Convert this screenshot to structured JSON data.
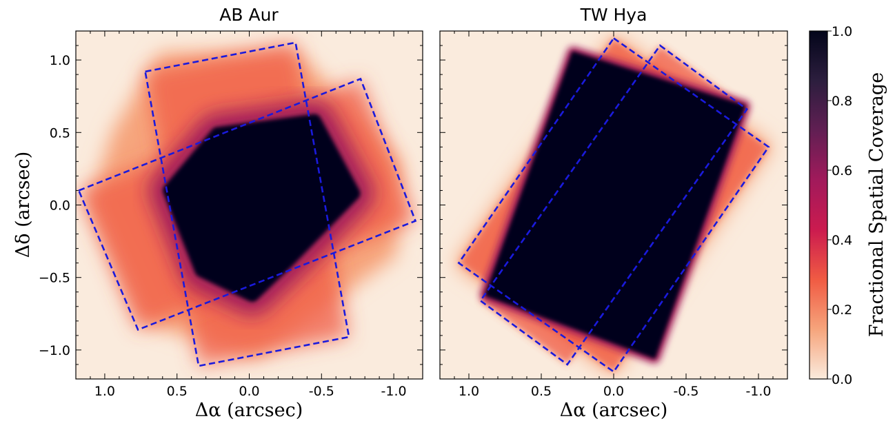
{
  "chart_data": [
    {
      "type": "heatmap",
      "title": "AB Aur",
      "xlabel": "Δα (arcsec)",
      "ylabel": "Δδ (arcsec)",
      "xlim": [
        1.2,
        -1.2
      ],
      "ylim": [
        -1.2,
        1.2
      ],
      "x_ticks": [
        1.0,
        0.5,
        0.0,
        -0.5,
        -1.0
      ],
      "x_tick_labels": [
        "1.0",
        "0.5",
        "0.0",
        "-0.5",
        "-1.0"
      ],
      "y_ticks": [
        1.0,
        0.5,
        0.0,
        -0.5,
        -1.0
      ],
      "y_tick_labels": [
        "1.0",
        "0.5",
        "0.0",
        "−0.5",
        "−1.0"
      ],
      "core_full_coverage": [
        [
          0.22,
          0.49
        ],
        [
          -0.45,
          0.58
        ],
        [
          -0.72,
          0.08
        ],
        [
          -0.27,
          -0.38
        ],
        [
          -0.02,
          -0.62
        ],
        [
          0.33,
          -0.45
        ],
        [
          0.49,
          -0.05
        ],
        [
          0.55,
          0.1
        ]
      ],
      "coverage_extent": [
        [
          0.62,
          1.05
        ],
        [
          -0.35,
          1.04
        ],
        [
          -1.05,
          0.3
        ],
        [
          -1.02,
          -0.35
        ],
        [
          -0.05,
          -1.05
        ],
        [
          0.72,
          -0.82
        ],
        [
          1.1,
          0.02
        ],
        [
          0.95,
          0.5
        ]
      ],
      "footprints": [
        [
          [
            0.72,
            0.92
          ],
          [
            -0.32,
            1.12
          ],
          [
            -0.69,
            -0.91
          ],
          [
            0.35,
            -1.11
          ]
        ],
        [
          [
            1.18,
            0.1
          ],
          [
            -0.77,
            0.87
          ],
          [
            -1.15,
            -0.11
          ],
          [
            0.77,
            -0.86
          ]
        ]
      ]
    },
    {
      "type": "heatmap",
      "title": "TW Hya",
      "xlabel": "Δα (arcsec)",
      "xlim": [
        1.2,
        -1.2
      ],
      "ylim": [
        -1.2,
        1.2
      ],
      "x_ticks": [
        1.0,
        0.5,
        0.0,
        -0.5,
        -1.0
      ],
      "x_tick_labels": [
        "1.0",
        "0.5",
        "0.0",
        "-0.5",
        "-1.0"
      ],
      "core_full_coverage": [
        [
          0.28,
          1.05
        ],
        [
          -0.9,
          0.68
        ],
        [
          -0.28,
          -1.05
        ],
        [
          0.88,
          -0.62
        ]
      ],
      "coverage_extent": [
        [
          0.0,
          1.17
        ],
        [
          -1.1,
          0.41
        ],
        [
          0.0,
          -1.17
        ],
        [
          1.1,
          -0.41
        ]
      ],
      "footprints": [
        [
          [
            0.0,
            1.15
          ],
          [
            -1.07,
            0.4
          ],
          [
            0.0,
            -1.15
          ],
          [
            1.07,
            -0.4
          ]
        ],
        [
          [
            -0.32,
            1.1
          ],
          [
            -0.92,
            0.66
          ],
          [
            0.32,
            -1.1
          ],
          [
            0.92,
            -0.66
          ]
        ]
      ]
    }
  ],
  "colorbar": {
    "label": "Fractional Spatial Coverage",
    "range": [
      0.0,
      1.0
    ],
    "ticks": [
      0.0,
      0.2,
      0.4,
      0.6,
      0.8,
      1.0
    ],
    "tick_labels": [
      "0.0",
      "0.2",
      "0.4",
      "0.6",
      "0.8",
      "1.0"
    ],
    "colormap": [
      "#faebdd",
      "#f6a47c",
      "#f05b43",
      "#cb1b4f",
      "#a11a5b",
      "#611f53",
      "#2c1e3e",
      "#03051a"
    ]
  },
  "colors": {
    "background_zero": "#faebdd",
    "full_coverage": "#03051a",
    "footprint_outline": "#1a1adc"
  }
}
